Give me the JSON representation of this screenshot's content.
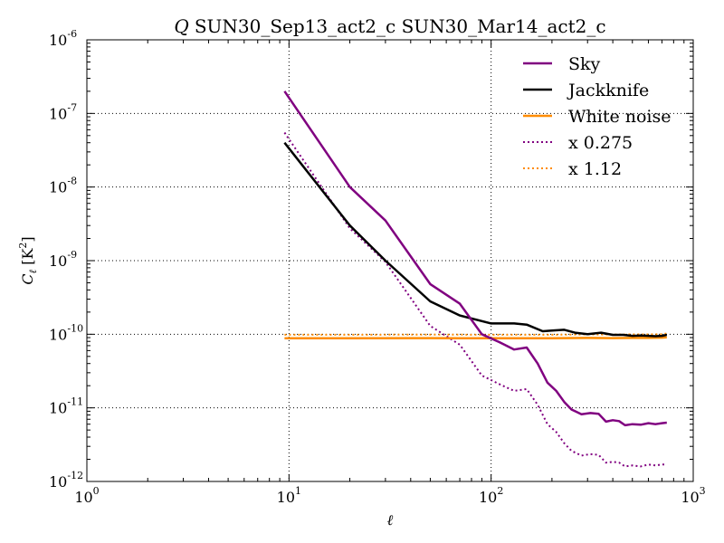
{
  "chart_data": {
    "type": "line",
    "title_italic": "Q",
    "title": "SUN30_Sep13_act2_c SUN30_Mar14_act2_c",
    "xlabel": "ℓ",
    "ylabel_main": "C",
    "ylabel_sub": "ℓ",
    "ylabel_unit": "[K",
    "ylabel_unit_sup": "2",
    "ylabel_unit_close": "]",
    "x_scale": "log",
    "y_scale": "log",
    "xlim": [
      1,
      1000
    ],
    "ylim": [
      1e-12,
      1e-06
    ],
    "x_ticks": [
      {
        "base": "10",
        "exp": "0",
        "value": 1
      },
      {
        "base": "10",
        "exp": "1",
        "value": 10
      },
      {
        "base": "10",
        "exp": "2",
        "value": 100
      },
      {
        "base": "10",
        "exp": "3",
        "value": 1000
      }
    ],
    "y_ticks": [
      {
        "base": "10",
        "exp": "-12",
        "value": 1e-12
      },
      {
        "base": "10",
        "exp": "-11",
        "value": 1e-11
      },
      {
        "base": "10",
        "exp": "-10",
        "value": 1e-10
      },
      {
        "base": "10",
        "exp": "-9",
        "value": 1e-09
      },
      {
        "base": "10",
        "exp": "-8",
        "value": 1e-08
      },
      {
        "base": "10",
        "exp": "-7",
        "value": 1e-07
      },
      {
        "base": "10",
        "exp": "-6",
        "value": 1e-06
      }
    ],
    "grid": true,
    "legend_position": "top-right",
    "series": [
      {
        "name": "Sky",
        "color": "#800080",
        "style": "solid",
        "x": [
          9.5,
          20,
          30,
          50,
          70,
          90,
          110,
          130,
          150,
          170,
          190,
          210,
          230,
          250,
          280,
          310,
          340,
          370,
          400,
          430,
          460,
          500,
          550,
          600,
          650,
          700,
          740
        ],
        "y": [
          2e-07,
          1e-08,
          3.5e-09,
          4.8e-10,
          2.6e-10,
          1e-10,
          7.8e-11,
          6.2e-11,
          6.6e-11,
          4e-11,
          2.2e-11,
          1.7e-11,
          1.2e-11,
          9.5e-12,
          8.2e-12,
          8.5e-12,
          8.3e-12,
          6.5e-12,
          6.8e-12,
          6.6e-12,
          5.8e-12,
          6e-12,
          5.9e-12,
          6.2e-12,
          6e-12,
          6.2e-12,
          6.3e-12
        ]
      },
      {
        "name": "Jackknife",
        "color": "#000000",
        "style": "solid",
        "x": [
          9.5,
          20,
          30,
          50,
          70,
          100,
          130,
          150,
          180,
          200,
          230,
          260,
          300,
          350,
          400,
          450,
          500,
          550,
          600,
          650,
          700,
          740
        ],
        "y": [
          4e-08,
          3e-09,
          1e-09,
          2.8e-10,
          1.8e-10,
          1.4e-10,
          1.4e-10,
          1.35e-10,
          1.1e-10,
          1.12e-10,
          1.15e-10,
          1.05e-10,
          1e-10,
          1.05e-10,
          9.8e-11,
          9.8e-11,
          9.5e-11,
          9.6e-11,
          9.5e-11,
          9.4e-11,
          9.5e-11,
          9.8e-11
        ]
      },
      {
        "name": "White noise",
        "color": "#ff8c00",
        "style": "solid",
        "x": [
          9.5,
          20,
          50,
          100,
          200,
          300,
          400,
          500,
          600,
          700,
          740
        ],
        "y": [
          8.8e-11,
          8.8e-11,
          8.85e-11,
          8.8e-11,
          8.8e-11,
          8.9e-11,
          8.85e-11,
          8.9e-11,
          8.9e-11,
          9e-11,
          9.1e-11
        ]
      },
      {
        "name": "x 0.275",
        "color": "#800080",
        "style": "dotted",
        "x": [
          9.5,
          20,
          30,
          50,
          70,
          90,
          110,
          130,
          150,
          170,
          190,
          210,
          230,
          250,
          280,
          310,
          340,
          370,
          400,
          430,
          460,
          500,
          550,
          600,
          650,
          700,
          740
        ],
        "y": [
          5.5e-08,
          2.75e-09,
          9.6e-10,
          1.3e-10,
          7.2e-11,
          2.75e-11,
          2.1e-11,
          1.7e-11,
          1.8e-11,
          1.1e-11,
          6e-12,
          4.7e-12,
          3.3e-12,
          2.6e-12,
          2.25e-12,
          2.35e-12,
          2.3e-12,
          1.8e-12,
          1.85e-12,
          1.8e-12,
          1.6e-12,
          1.65e-12,
          1.6e-12,
          1.7e-12,
          1.65e-12,
          1.7e-12,
          1.7e-12
        ]
      },
      {
        "name": "x 1.12",
        "color": "#ff8c00",
        "style": "dotted",
        "x": [
          9.5,
          20,
          50,
          100,
          200,
          300,
          400,
          500,
          600,
          700,
          740
        ],
        "y": [
          9.85e-11,
          9.85e-11,
          9.9e-11,
          9.85e-11,
          9.85e-11,
          9.95e-11,
          9.9e-11,
          9.95e-11,
          9.95e-11,
          1e-10,
          1.02e-10
        ]
      }
    ]
  }
}
